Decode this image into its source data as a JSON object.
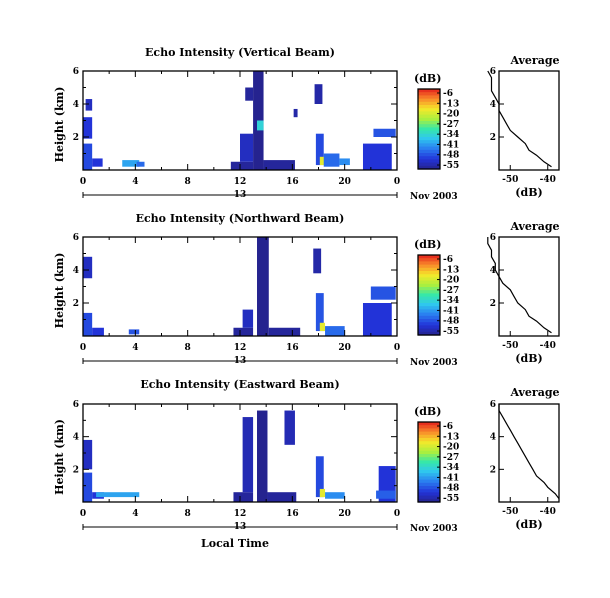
{
  "chart_data": [
    {
      "type": "heatmap",
      "title": "Echo Intensity (Vertical Beam)",
      "ylabel": "Height (km)",
      "y_ticks": [
        "2",
        "4",
        "6"
      ],
      "x_ticks": [
        "0",
        "4",
        "8",
        "12",
        "16",
        "20",
        "0"
      ],
      "date_label": "13",
      "month_label": "Nov 2003",
      "colorbar": {
        "unit": "(dB)",
        "ticks": [
          "-6",
          "-13",
          "-20",
          "-27",
          "-34",
          "-41",
          "-48",
          "-55"
        ]
      },
      "blocks": [
        {
          "x": [
            0.0,
            0.7
          ],
          "y": [
            0.0,
            1.6
          ],
          "c": "-48"
        },
        {
          "x": [
            0.0,
            0.7
          ],
          "y": [
            1.9,
            3.2
          ],
          "c": "-50"
        },
        {
          "x": [
            0.2,
            0.7
          ],
          "y": [
            3.6,
            4.3
          ],
          "c": "-52"
        },
        {
          "x": [
            0.7,
            1.5
          ],
          "y": [
            0.2,
            0.7
          ],
          "c": "-50"
        },
        {
          "x": [
            3.0,
            4.3
          ],
          "y": [
            0.2,
            0.6
          ],
          "c": "-40"
        },
        {
          "x": [
            4.1,
            4.7
          ],
          "y": [
            0.2,
            0.5
          ],
          "c": "-45"
        },
        {
          "x": [
            11.3,
            13.0
          ],
          "y": [
            0.0,
            0.5
          ],
          "c": "-55"
        },
        {
          "x": [
            12.0,
            13.0
          ],
          "y": [
            0.5,
            2.2
          ],
          "c": "-52"
        },
        {
          "x": [
            12.4,
            13.0
          ],
          "y": [
            4.2,
            5.0
          ],
          "c": "-55"
        },
        {
          "x": [
            13.0,
            13.8
          ],
          "y": [
            0.0,
            6.0
          ],
          "c": "-56"
        },
        {
          "x": [
            13.3,
            13.8
          ],
          "y": [
            2.4,
            3.0
          ],
          "c": "-35"
        },
        {
          "x": [
            13.8,
            16.2
          ],
          "y": [
            0.0,
            0.6
          ],
          "c": "-55"
        },
        {
          "x": [
            16.1,
            16.4
          ],
          "y": [
            3.2,
            3.7
          ],
          "c": "-54"
        },
        {
          "x": [
            17.8,
            18.4
          ],
          "y": [
            0.3,
            2.2
          ],
          "c": "-48"
        },
        {
          "x": [
            18.1,
            18.5
          ],
          "y": [
            0.3,
            0.8
          ],
          "c": "-20"
        },
        {
          "x": [
            17.7,
            18.3
          ],
          "y": [
            4.0,
            5.2
          ],
          "c": "-54"
        },
        {
          "x": [
            18.4,
            19.6
          ],
          "y": [
            0.2,
            1.0
          ],
          "c": "-45"
        },
        {
          "x": [
            19.6,
            20.4
          ],
          "y": [
            0.3,
            0.7
          ],
          "c": "-42"
        },
        {
          "x": [
            21.4,
            23.6
          ],
          "y": [
            0.0,
            1.6
          ],
          "c": "-50"
        },
        {
          "x": [
            22.2,
            23.9
          ],
          "y": [
            2.0,
            2.5
          ],
          "c": "-47"
        }
      ],
      "average_profile": {
        "title": "Average",
        "xlabel": "(dB)",
        "x_ticks": [
          "-50",
          "-40"
        ],
        "y_ticks": [
          "2",
          "4",
          "6"
        ],
        "height_km": [
          0.2,
          0.5,
          0.9,
          1.2,
          1.6,
          2.0,
          2.4,
          2.8,
          3.2,
          3.6,
          4.0,
          4.4,
          4.8,
          5.2,
          5.6,
          6.0
        ],
        "db": [
          -39,
          -41,
          -43,
          -45,
          -46,
          -48,
          -50,
          -51,
          -52,
          -53,
          -53,
          -54,
          -55,
          -55,
          -55,
          -56
        ]
      }
    },
    {
      "type": "heatmap",
      "title": "Echo Intensity (Northward Beam)",
      "ylabel": "Height (km)",
      "y_ticks": [
        "2",
        "4",
        "6"
      ],
      "x_ticks": [
        "0",
        "4",
        "8",
        "12",
        "16",
        "20",
        "0"
      ],
      "date_label": "13",
      "month_label": "Nov 2003",
      "colorbar": {
        "unit": "(dB)",
        "ticks": [
          "-6",
          "-13",
          "-20",
          "-27",
          "-34",
          "-41",
          "-48",
          "-55"
        ]
      },
      "blocks": [
        {
          "x": [
            0.0,
            0.7
          ],
          "y": [
            0.0,
            1.4
          ],
          "c": "-48"
        },
        {
          "x": [
            0.0,
            0.7
          ],
          "y": [
            3.5,
            4.8
          ],
          "c": "-52"
        },
        {
          "x": [
            0.7,
            1.6
          ],
          "y": [
            0.0,
            0.5
          ],
          "c": "-50"
        },
        {
          "x": [
            3.5,
            4.3
          ],
          "y": [
            0.1,
            0.4
          ],
          "c": "-47"
        },
        {
          "x": [
            11.5,
            13.0
          ],
          "y": [
            0.0,
            0.5
          ],
          "c": "-55"
        },
        {
          "x": [
            12.2,
            13.0
          ],
          "y": [
            0.5,
            1.6
          ],
          "c": "-52"
        },
        {
          "x": [
            13.3,
            14.2
          ],
          "y": [
            0.0,
            6.0
          ],
          "c": "-56"
        },
        {
          "x": [
            14.2,
            16.6
          ],
          "y": [
            0.0,
            0.5
          ],
          "c": "-55"
        },
        {
          "x": [
            17.6,
            18.2
          ],
          "y": [
            3.8,
            5.3
          ],
          "c": "-54"
        },
        {
          "x": [
            17.8,
            18.4
          ],
          "y": [
            0.3,
            2.6
          ],
          "c": "-47"
        },
        {
          "x": [
            18.1,
            18.5
          ],
          "y": [
            0.3,
            0.8
          ],
          "c": "-20"
        },
        {
          "x": [
            18.5,
            20.0
          ],
          "y": [
            0.0,
            0.6
          ],
          "c": "-45"
        },
        {
          "x": [
            21.4,
            23.6
          ],
          "y": [
            0.0,
            2.0
          ],
          "c": "-50"
        },
        {
          "x": [
            22.0,
            23.9
          ],
          "y": [
            2.2,
            3.0
          ],
          "c": "-47"
        }
      ],
      "average_profile": {
        "title": "Average",
        "xlabel": "(dB)",
        "x_ticks": [
          "-50",
          "-40"
        ],
        "y_ticks": [
          "2",
          "4",
          "6"
        ],
        "height_km": [
          0.2,
          0.5,
          0.9,
          1.2,
          1.6,
          2.0,
          2.4,
          2.8,
          3.2,
          3.6,
          4.0,
          4.4,
          4.8,
          5.2,
          5.6,
          6.0
        ],
        "db": [
          -39,
          -41,
          -43,
          -45,
          -46,
          -48,
          -49,
          -50,
          -52,
          -53,
          -54,
          -54,
          -55,
          -55,
          -56,
          -56
        ]
      }
    },
    {
      "type": "heatmap",
      "title": "Echo Intensity (Eastward Beam)",
      "ylabel": "Height (km)",
      "y_ticks": [
        "2",
        "4",
        "6"
      ],
      "x_ticks": [
        "0",
        "4",
        "8",
        "12",
        "16",
        "20",
        "0"
      ],
      "date_label": "13",
      "month_label": "Nov 2003",
      "xlabel": "Local Time",
      "colorbar": {
        "unit": "(dB)",
        "ticks": [
          "-6",
          "-13",
          "-20",
          "-27",
          "-34",
          "-41",
          "-48",
          "-55"
        ]
      },
      "blocks": [
        {
          "x": [
            0.0,
            0.7
          ],
          "y": [
            0.0,
            1.8
          ],
          "c": "-48"
        },
        {
          "x": [
            0.0,
            0.7
          ],
          "y": [
            2.0,
            3.8
          ],
          "c": "-52"
        },
        {
          "x": [
            0.7,
            1.6
          ],
          "y": [
            0.2,
            0.6
          ],
          "c": "-50"
        },
        {
          "x": [
            1.0,
            4.3
          ],
          "y": [
            0.3,
            0.6
          ],
          "c": "-40"
        },
        {
          "x": [
            11.5,
            13.0
          ],
          "y": [
            0.0,
            0.6
          ],
          "c": "-55"
        },
        {
          "x": [
            12.2,
            13.0
          ],
          "y": [
            0.6,
            5.2
          ],
          "c": "-53"
        },
        {
          "x": [
            13.3,
            14.1
          ],
          "y": [
            0.0,
            5.6
          ],
          "c": "-56"
        },
        {
          "x": [
            14.1,
            16.3
          ],
          "y": [
            0.0,
            0.6
          ],
          "c": "-55"
        },
        {
          "x": [
            15.4,
            16.2
          ],
          "y": [
            3.5,
            5.6
          ],
          "c": "-53"
        },
        {
          "x": [
            17.8,
            18.4
          ],
          "y": [
            0.3,
            2.8
          ],
          "c": "-48"
        },
        {
          "x": [
            18.1,
            18.5
          ],
          "y": [
            0.3,
            0.8
          ],
          "c": "-20"
        },
        {
          "x": [
            18.5,
            20.0
          ],
          "y": [
            0.2,
            0.6
          ],
          "c": "-42"
        },
        {
          "x": [
            22.6,
            23.9
          ],
          "y": [
            0.0,
            2.2
          ],
          "c": "-50"
        },
        {
          "x": [
            22.4,
            23.9
          ],
          "y": [
            0.2,
            0.7
          ],
          "c": "-46"
        }
      ],
      "average_profile": {
        "title": "Average",
        "xlabel": "(dB)",
        "x_ticks": [
          "-50",
          "-40"
        ],
        "y_ticks": [
          "2",
          "4",
          "6"
        ],
        "height_km": [
          0.2,
          0.5,
          0.9,
          1.2,
          1.6,
          2.0,
          2.4,
          2.8,
          3.2,
          3.6,
          4.0,
          4.4,
          4.8,
          5.2,
          5.6,
          6.0
        ],
        "db": [
          -37,
          -38,
          -40,
          -41,
          -43,
          -44,
          -45,
          -46,
          -47,
          -48,
          -49,
          -50,
          -51,
          -52,
          -53,
          -53
        ]
      }
    }
  ]
}
